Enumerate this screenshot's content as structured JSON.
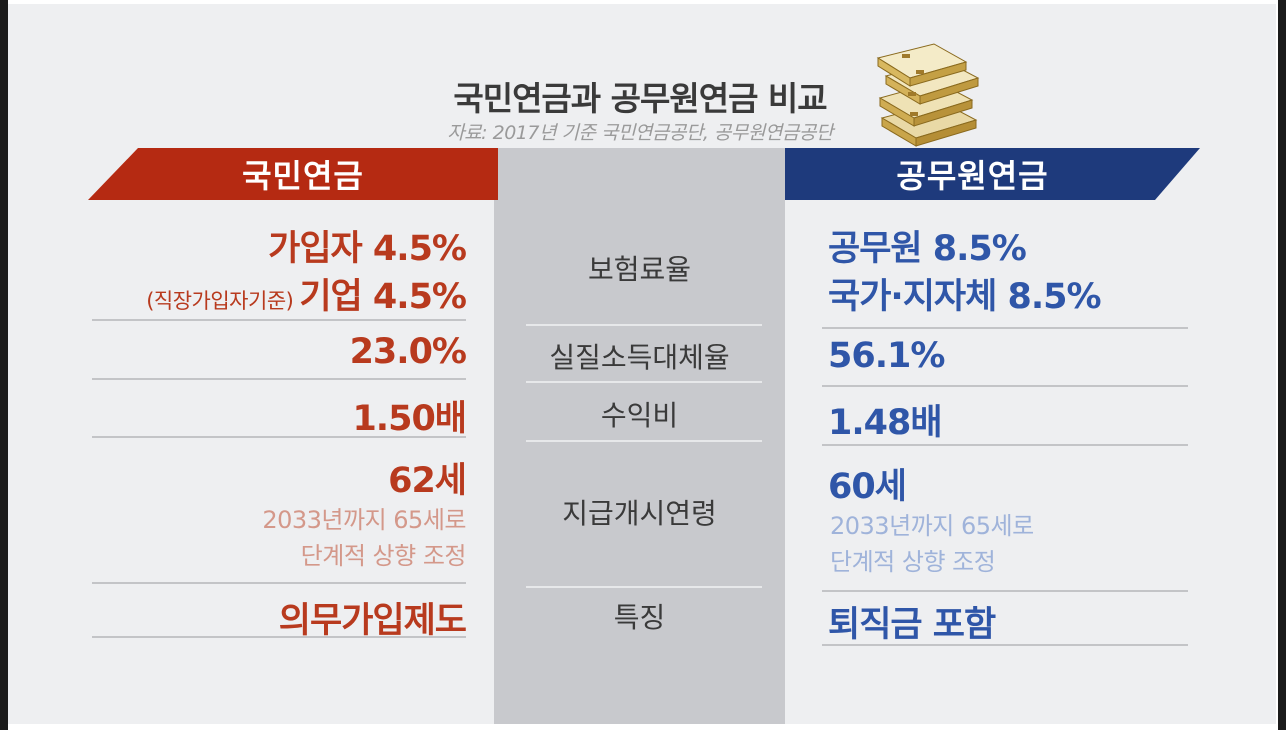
{
  "title": "국민연금과 공무원연금 비교",
  "source": "자료: 2017년 기준 국민연금공단, 공무원연금공단",
  "icon": "money-bundle-icon",
  "colors": {
    "left_accent": "#b52a12",
    "right_accent": "#1e3a7c",
    "center": "#c8c9cd"
  },
  "headers": {
    "left": "국민연금",
    "right": "공무원연금"
  },
  "rows": [
    {
      "label": "보험료율",
      "left": [
        "가입자 4.5%",
        "기업 4.5%"
      ],
      "left_note": "(직장가입자기준)",
      "right": [
        "공무원 8.5%",
        "국가·지자체 8.5%"
      ]
    },
    {
      "label": "실질소득대체율",
      "left": "23.0%",
      "right": "56.1%"
    },
    {
      "label": "수익비",
      "left": "1.50배",
      "right": "1.48배"
    },
    {
      "label": "지급개시연령",
      "left": "62세",
      "left_sub": [
        "2033년까지 65세로",
        "단계적 상향 조정"
      ],
      "right": "60세",
      "right_sub": [
        "2033년까지 65세로",
        "단계적 상향 조정"
      ]
    },
    {
      "label": "특징",
      "left": "의무가입제도",
      "right": "퇴직금 포함"
    }
  ]
}
